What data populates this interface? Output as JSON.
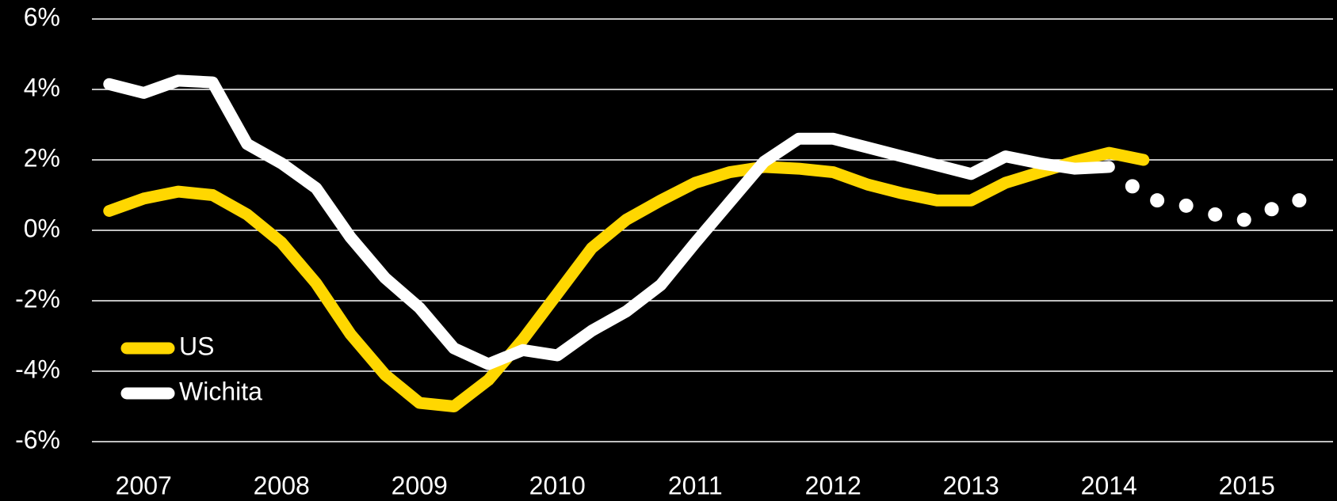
{
  "chart_data": {
    "type": "line",
    "xlim": [
      2006.625,
      2015.625
    ],
    "xticks": [
      2007,
      2008,
      2009,
      2010,
      2011,
      2012,
      2013,
      2014,
      2015
    ],
    "ylim": [
      -6,
      6
    ],
    "yticks": [
      {
        "value": -6,
        "label": "-6%"
      },
      {
        "value": -4,
        "label": "-4%"
      },
      {
        "value": -2,
        "label": "-2%"
      },
      {
        "value": 0,
        "label": "0%"
      },
      {
        "value": 2,
        "label": "2%"
      },
      {
        "value": 4,
        "label": "4%"
      },
      {
        "value": 6,
        "label": "6%"
      }
    ],
    "grid": true,
    "legend": "lower left",
    "series": [
      {
        "name": "US",
        "color": "#ffd700",
        "x": [
          2006.75,
          2007,
          2007.25,
          2007.5,
          2007.75,
          2008,
          2008.25,
          2008.5,
          2008.75,
          2009,
          2009.25,
          2009.5,
          2009.75,
          2010,
          2010.25,
          2010.5,
          2010.75,
          2011,
          2011.25,
          2011.5,
          2011.75,
          2012,
          2012.25,
          2012.5,
          2012.75,
          2013,
          2013.25,
          2013.5,
          2013.75,
          2014,
          2014.25
        ],
        "values": [
          0.55,
          0.9,
          1.1,
          1.0,
          0.45,
          -0.35,
          -1.5,
          -2.95,
          -4.1,
          -4.9,
          -5.0,
          -4.25,
          -3.1,
          -1.8,
          -0.5,
          0.3,
          0.85,
          1.35,
          1.65,
          1.8,
          1.75,
          1.65,
          1.3,
          1.05,
          0.85,
          0.85,
          1.35,
          1.65,
          1.95,
          2.2,
          2.0
        ]
      },
      {
        "name": "Wichita",
        "color": "#ffffff",
        "x": [
          2006.75,
          2007,
          2007.25,
          2007.5,
          2007.75,
          2008,
          2008.25,
          2008.5,
          2008.75,
          2009,
          2009.25,
          2009.5,
          2009.75,
          2010,
          2010.25,
          2010.5,
          2010.75,
          2011,
          2011.25,
          2011.5,
          2011.75,
          2012,
          2012.25,
          2012.5,
          2012.75,
          2013,
          2013.25,
          2013.5,
          2013.75,
          2014
        ],
        "values": [
          4.15,
          3.9,
          4.25,
          4.2,
          2.45,
          1.9,
          1.2,
          -0.2,
          -1.35,
          -2.2,
          -3.35,
          -3.8,
          -3.4,
          -3.55,
          -2.85,
          -2.3,
          -1.55,
          -0.35,
          0.8,
          1.95,
          2.6,
          2.6,
          2.35,
          2.1,
          1.85,
          1.6,
          2.1,
          1.9,
          1.75,
          1.8
        ]
      },
      {
        "color": "#ffffff",
        "style": "dotted",
        "x": [
          2014.17,
          2014.35,
          2014.56,
          2014.77,
          2014.98,
          2015.18,
          2015.38
        ],
        "values": [
          1.25,
          0.85,
          0.7,
          0.45,
          0.3,
          0.6,
          0.85
        ]
      }
    ]
  }
}
